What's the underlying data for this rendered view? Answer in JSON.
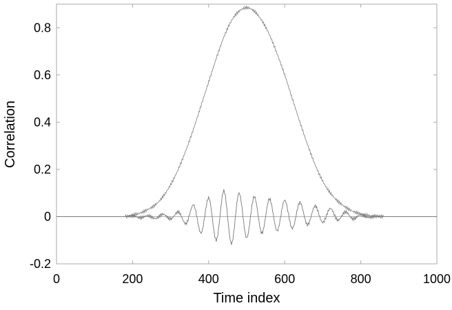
{
  "chart_data": {
    "type": "line",
    "title": "",
    "xlabel": "Time index",
    "ylabel": "Correlation",
    "xlim": [
      0,
      1000
    ],
    "ylim": [
      -0.2,
      0.9
    ],
    "x_ticks": [
      0,
      200,
      400,
      600,
      800,
      1000
    ],
    "y_ticks": [
      -0.2,
      0,
      0.2,
      0.4,
      0.6,
      0.8
    ],
    "y_tick_labels": [
      "-0.2",
      "0",
      "0.2",
      "0.4",
      "0.6",
      "0.8"
    ],
    "grid": false,
    "zero_line": true,
    "colors": {
      "axis": "#aaaaaa",
      "zero_line": "#b0b0b0",
      "envelope": "#888888",
      "oscillation": "#777777"
    },
    "series": [
      {
        "x": [
          0,
          180,
          200,
          220,
          240,
          260,
          280,
          300,
          320,
          340,
          360,
          380,
          400,
          420,
          440,
          460,
          480,
          500,
          520,
          540,
          560,
          580,
          600,
          620,
          640,
          660,
          680,
          700,
          720,
          740,
          760,
          780,
          800,
          820,
          840,
          860,
          1000
        ],
        "values": [
          0,
          0,
          0.007,
          0.015,
          0.03,
          0.05,
          0.085,
          0.135,
          0.2,
          0.28,
          0.37,
          0.47,
          0.57,
          0.67,
          0.76,
          0.83,
          0.87,
          0.885,
          0.87,
          0.83,
          0.77,
          0.69,
          0.6,
          0.5,
          0.4,
          0.305,
          0.22,
          0.15,
          0.1,
          0.065,
          0.04,
          0.022,
          0.012,
          0.005,
          0.002,
          0,
          0
        ]
      },
      {
        "x": [
          0,
          180,
          200,
          220,
          240,
          260,
          280,
          300,
          320,
          340,
          360,
          380,
          400,
          420,
          440,
          460,
          480,
          500,
          520,
          540,
          560,
          580,
          600,
          620,
          640,
          660,
          680,
          700,
          720,
          740,
          760,
          780,
          800,
          820,
          840,
          860,
          1000
        ],
        "values": [
          0,
          0,
          0.003,
          -0.005,
          0.004,
          -0.008,
          0.01,
          -0.01,
          0.02,
          -0.03,
          0.05,
          -0.07,
          0.08,
          -0.1,
          0.11,
          -0.115,
          0.1,
          -0.09,
          0.085,
          -0.07,
          0.075,
          -0.06,
          0.07,
          -0.05,
          0.06,
          -0.035,
          0.045,
          -0.025,
          0.035,
          -0.015,
          0.02,
          -0.01,
          0.008,
          -0.004,
          0.002,
          0,
          0
        ]
      }
    ]
  }
}
